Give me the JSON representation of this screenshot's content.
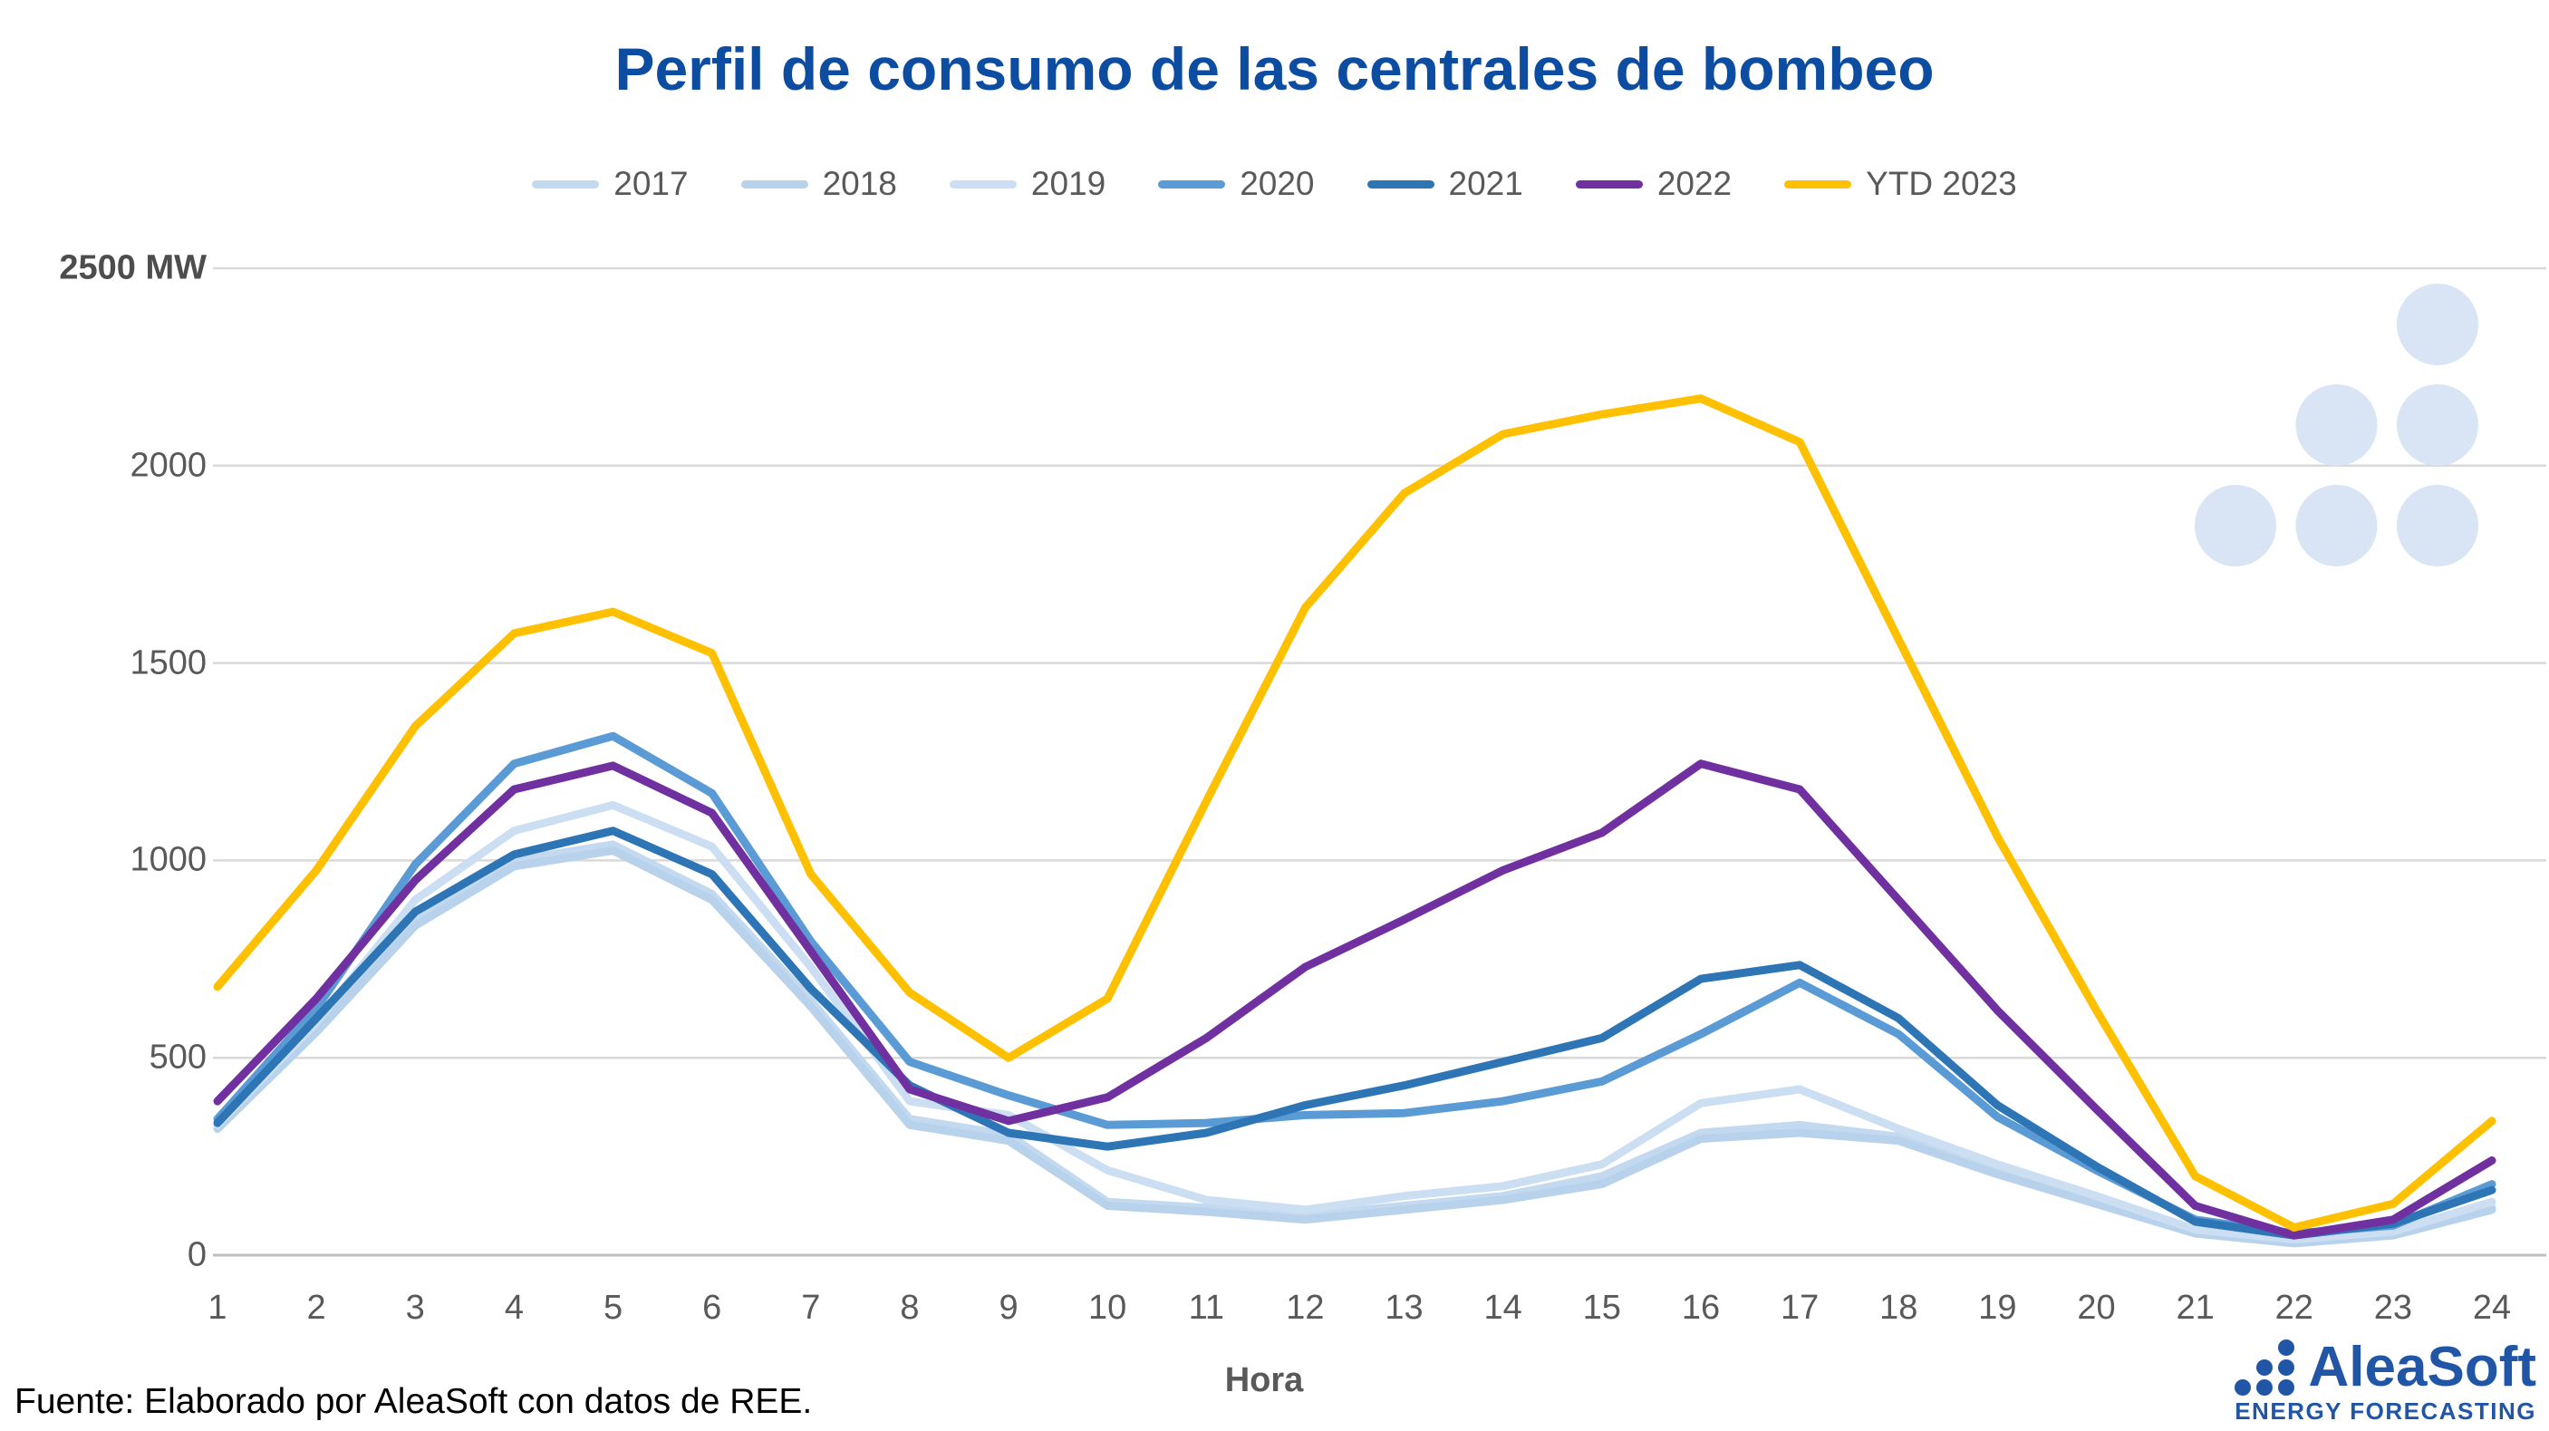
{
  "title": "Perfil de consumo de las centrales de bombeo",
  "source_note": "Fuente: Elaborado por AleaSoft con datos de REE.",
  "logo": {
    "name": "AleaSoft",
    "tagline": "ENERGY FORECASTING"
  },
  "colors": {
    "title": "#0C4DA2",
    "axis_text": "#595959",
    "gridline": "#D9D9D9",
    "axis_line": "#BFBFBF",
    "logo_blue": "#2156A6",
    "watermark_dot": "#D9E5F4"
  },
  "chart_data": {
    "type": "line",
    "title": "Perfil de consumo de las centrales de bombeo",
    "xlabel": "Hora",
    "ylabel": "MW",
    "ylim": [
      0,
      2500
    ],
    "grid": true,
    "legend_position": "top",
    "x": [
      1,
      2,
      3,
      4,
      5,
      6,
      7,
      8,
      9,
      10,
      11,
      12,
      13,
      14,
      15,
      16,
      17,
      18,
      19,
      20,
      21,
      22,
      23,
      24
    ],
    "y_ticks": [
      {
        "label": "2500 MW",
        "value": 2500
      },
      {
        "label": "2000",
        "value": 2000
      },
      {
        "label": "1500",
        "value": 1500
      },
      {
        "label": "1000",
        "value": 1000
      },
      {
        "label": "500",
        "value": 500
      },
      {
        "label": "0",
        "value": 0
      }
    ],
    "series": [
      {
        "name": "2017",
        "color": "#C3D9EF",
        "values": [
          325,
          575,
          845,
          1000,
          1040,
          915,
          645,
          345,
          305,
          135,
          120,
          100,
          125,
          150,
          200,
          310,
          330,
          300,
          215,
          140,
          60,
          35,
          55,
          120
        ]
      },
      {
        "name": "2018",
        "color": "#B8D2EB",
        "values": [
          320,
          565,
          835,
          985,
          1025,
          900,
          630,
          330,
          290,
          125,
          110,
          90,
          115,
          140,
          180,
          295,
          310,
          290,
          205,
          130,
          55,
          30,
          50,
          115
        ]
      },
      {
        "name": "2019",
        "color": "#CCDFF2",
        "values": [
          330,
          590,
          900,
          1075,
          1140,
          1035,
          730,
          390,
          355,
          215,
          140,
          115,
          150,
          175,
          230,
          385,
          420,
          320,
          230,
          150,
          65,
          40,
          60,
          135
        ]
      },
      {
        "name": "2020",
        "color": "#5B9BD5",
        "values": [
          345,
          625,
          990,
          1245,
          1315,
          1170,
          795,
          490,
          405,
          330,
          335,
          355,
          360,
          390,
          440,
          560,
          690,
          560,
          350,
          215,
          90,
          55,
          75,
          180
        ]
      },
      {
        "name": "2021",
        "color": "#2E75B6",
        "values": [
          335,
          600,
          870,
          1015,
          1075,
          965,
          675,
          430,
          310,
          275,
          310,
          380,
          430,
          490,
          550,
          700,
          735,
          600,
          380,
          225,
          85,
          50,
          80,
          165
        ]
      },
      {
        "name": "2022",
        "color": "#7030A0",
        "values": [
          390,
          650,
          950,
          1180,
          1240,
          1120,
          770,
          420,
          340,
          400,
          550,
          730,
          850,
          975,
          1070,
          1245,
          1180,
          900,
          620,
          370,
          125,
          50,
          90,
          240
        ]
      },
      {
        "name": "YTD 2023",
        "color": "#FFC000",
        "values": [
          680,
          975,
          1340,
          1575,
          1630,
          1525,
          965,
          665,
          500,
          650,
          1150,
          1640,
          1930,
          2080,
          2130,
          2170,
          2060,
          1560,
          1060,
          620,
          200,
          70,
          130,
          340
        ]
      }
    ]
  }
}
